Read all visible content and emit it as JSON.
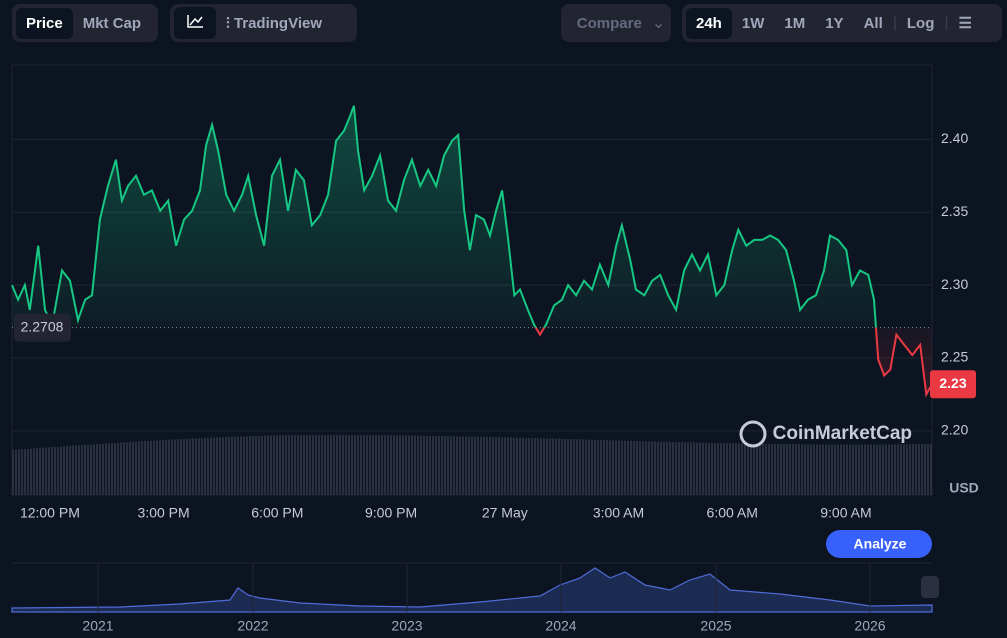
{
  "ui": {
    "tabs": [
      "Price",
      "Mkt Cap"
    ],
    "tradingview": "TradingView",
    "compare": "Compare",
    "ranges": [
      "24h",
      "1W",
      "1M",
      "1Y",
      "All"
    ],
    "log": "Log",
    "analyze": "Analyze",
    "watermark": "CoinMarketCap",
    "currency": "USD"
  },
  "chart_data": {
    "type": "line",
    "x": [
      11.0,
      11.16,
      11.34,
      11.47,
      11.69,
      11.87,
      12.06,
      12.32,
      12.53,
      12.74,
      12.93,
      13.11,
      13.32,
      13.53,
      13.74,
      13.9,
      14.06,
      14.27,
      14.48,
      14.69,
      14.91,
      15.12,
      15.33,
      15.54,
      15.75,
      15.96,
      16.12,
      16.28,
      16.44,
      16.65,
      16.86,
      17.07,
      17.23,
      17.44,
      17.65,
      17.86,
      18.07,
      18.28,
      18.49,
      18.7,
      18.91,
      19.13,
      19.34,
      19.55,
      19.76,
      19.92,
      20.02,
      20.13,
      20.29,
      20.5,
      20.71,
      20.92,
      21.13,
      21.34,
      21.55,
      21.77,
      21.98,
      22.19,
      22.4,
      22.61,
      22.77,
      22.93,
      23.08,
      23.24,
      23.45,
      23.61,
      23.77,
      23.93,
      24.09,
      24.25,
      24.4,
      24.61,
      24.77,
      24.93,
      25.09,
      25.3,
      25.51,
      25.67,
      25.88,
      26.09,
      26.3,
      26.51,
      26.73,
      26.94,
      27.09,
      27.31,
      27.46,
      27.68,
      27.89,
      28.1,
      28.31,
      28.52,
      28.73,
      28.94,
      29.15,
      29.36,
      29.58,
      29.79,
      30.0,
      30.16,
      30.37,
      30.58,
      30.79,
      31.0,
      31.21,
      31.42,
      31.63,
      31.79,
      32.0,
      32.21,
      32.42,
      32.58,
      32.79,
      33.01,
      33.16,
      33.37,
      33.59,
      33.74,
      33.85,
      34.01,
      34.17,
      34.33,
      34.54,
      34.75,
      34.96,
      35.12,
      35.27
    ],
    "values": [
      2.3,
      2.29,
      2.3,
      2.283,
      2.327,
      2.283,
      2.273,
      2.31,
      2.303,
      2.276,
      2.29,
      2.293,
      2.345,
      2.368,
      2.386,
      2.358,
      2.368,
      2.375,
      2.362,
      2.365,
      2.351,
      2.358,
      2.327,
      2.345,
      2.351,
      2.365,
      2.396,
      2.41,
      2.392,
      2.362,
      2.351,
      2.362,
      2.375,
      2.348,
      2.327,
      2.375,
      2.386,
      2.351,
      2.379,
      2.372,
      2.341,
      2.348,
      2.362,
      2.399,
      2.406,
      2.416,
      2.423,
      2.392,
      2.365,
      2.375,
      2.389,
      2.358,
      2.351,
      2.372,
      2.386,
      2.368,
      2.379,
      2.368,
      2.389,
      2.399,
      2.403,
      2.351,
      2.324,
      2.348,
      2.345,
      2.334,
      2.351,
      2.365,
      2.331,
      2.293,
      2.297,
      2.283,
      2.273,
      2.266,
      2.273,
      2.286,
      2.29,
      2.3,
      2.293,
      2.303,
      2.297,
      2.314,
      2.3,
      2.327,
      2.341,
      2.317,
      2.297,
      2.293,
      2.303,
      2.307,
      2.293,
      2.283,
      2.31,
      2.321,
      2.31,
      2.321,
      2.293,
      2.3,
      2.324,
      2.338,
      2.327,
      2.331,
      2.331,
      2.334,
      2.331,
      2.324,
      2.303,
      2.283,
      2.29,
      2.293,
      2.31,
      2.334,
      2.331,
      2.324,
      2.3,
      2.31,
      2.307,
      2.29,
      2.249,
      2.238,
      2.242,
      2.266,
      2.259,
      2.252,
      2.259,
      2.225,
      2.232
    ],
    "reference": 2.2708,
    "last_price_label": "2.23",
    "up_color": "#16c784",
    "down_color": "#ea3943",
    "xlim": [
      11,
      35.27
    ],
    "xticks": [
      {
        "value": 12,
        "label": "12:00 PM"
      },
      {
        "value": 15,
        "label": "3:00 PM"
      },
      {
        "value": 18,
        "label": "6:00 PM"
      },
      {
        "value": 21,
        "label": "9:00 PM"
      },
      {
        "value": 24,
        "label": "27 May"
      },
      {
        "value": 27,
        "label": "3:00 AM"
      },
      {
        "value": 30,
        "label": "6:00 AM"
      },
      {
        "value": 33,
        "label": "9:00 AM"
      }
    ],
    "ylim": [
      2.156,
      2.451
    ],
    "yticks": [
      {
        "value": 2.4,
        "label": "2.40"
      },
      2.35,
      {
        "value": 2.3,
        "label": "2.30"
      },
      2.25,
      {
        "value": 2.2,
        "label": "2.20"
      }
    ],
    "grid": true
  },
  "navigator": {
    "years": [
      "2021",
      "2022",
      "2023",
      "2024",
      "2025",
      "2026"
    ]
  }
}
